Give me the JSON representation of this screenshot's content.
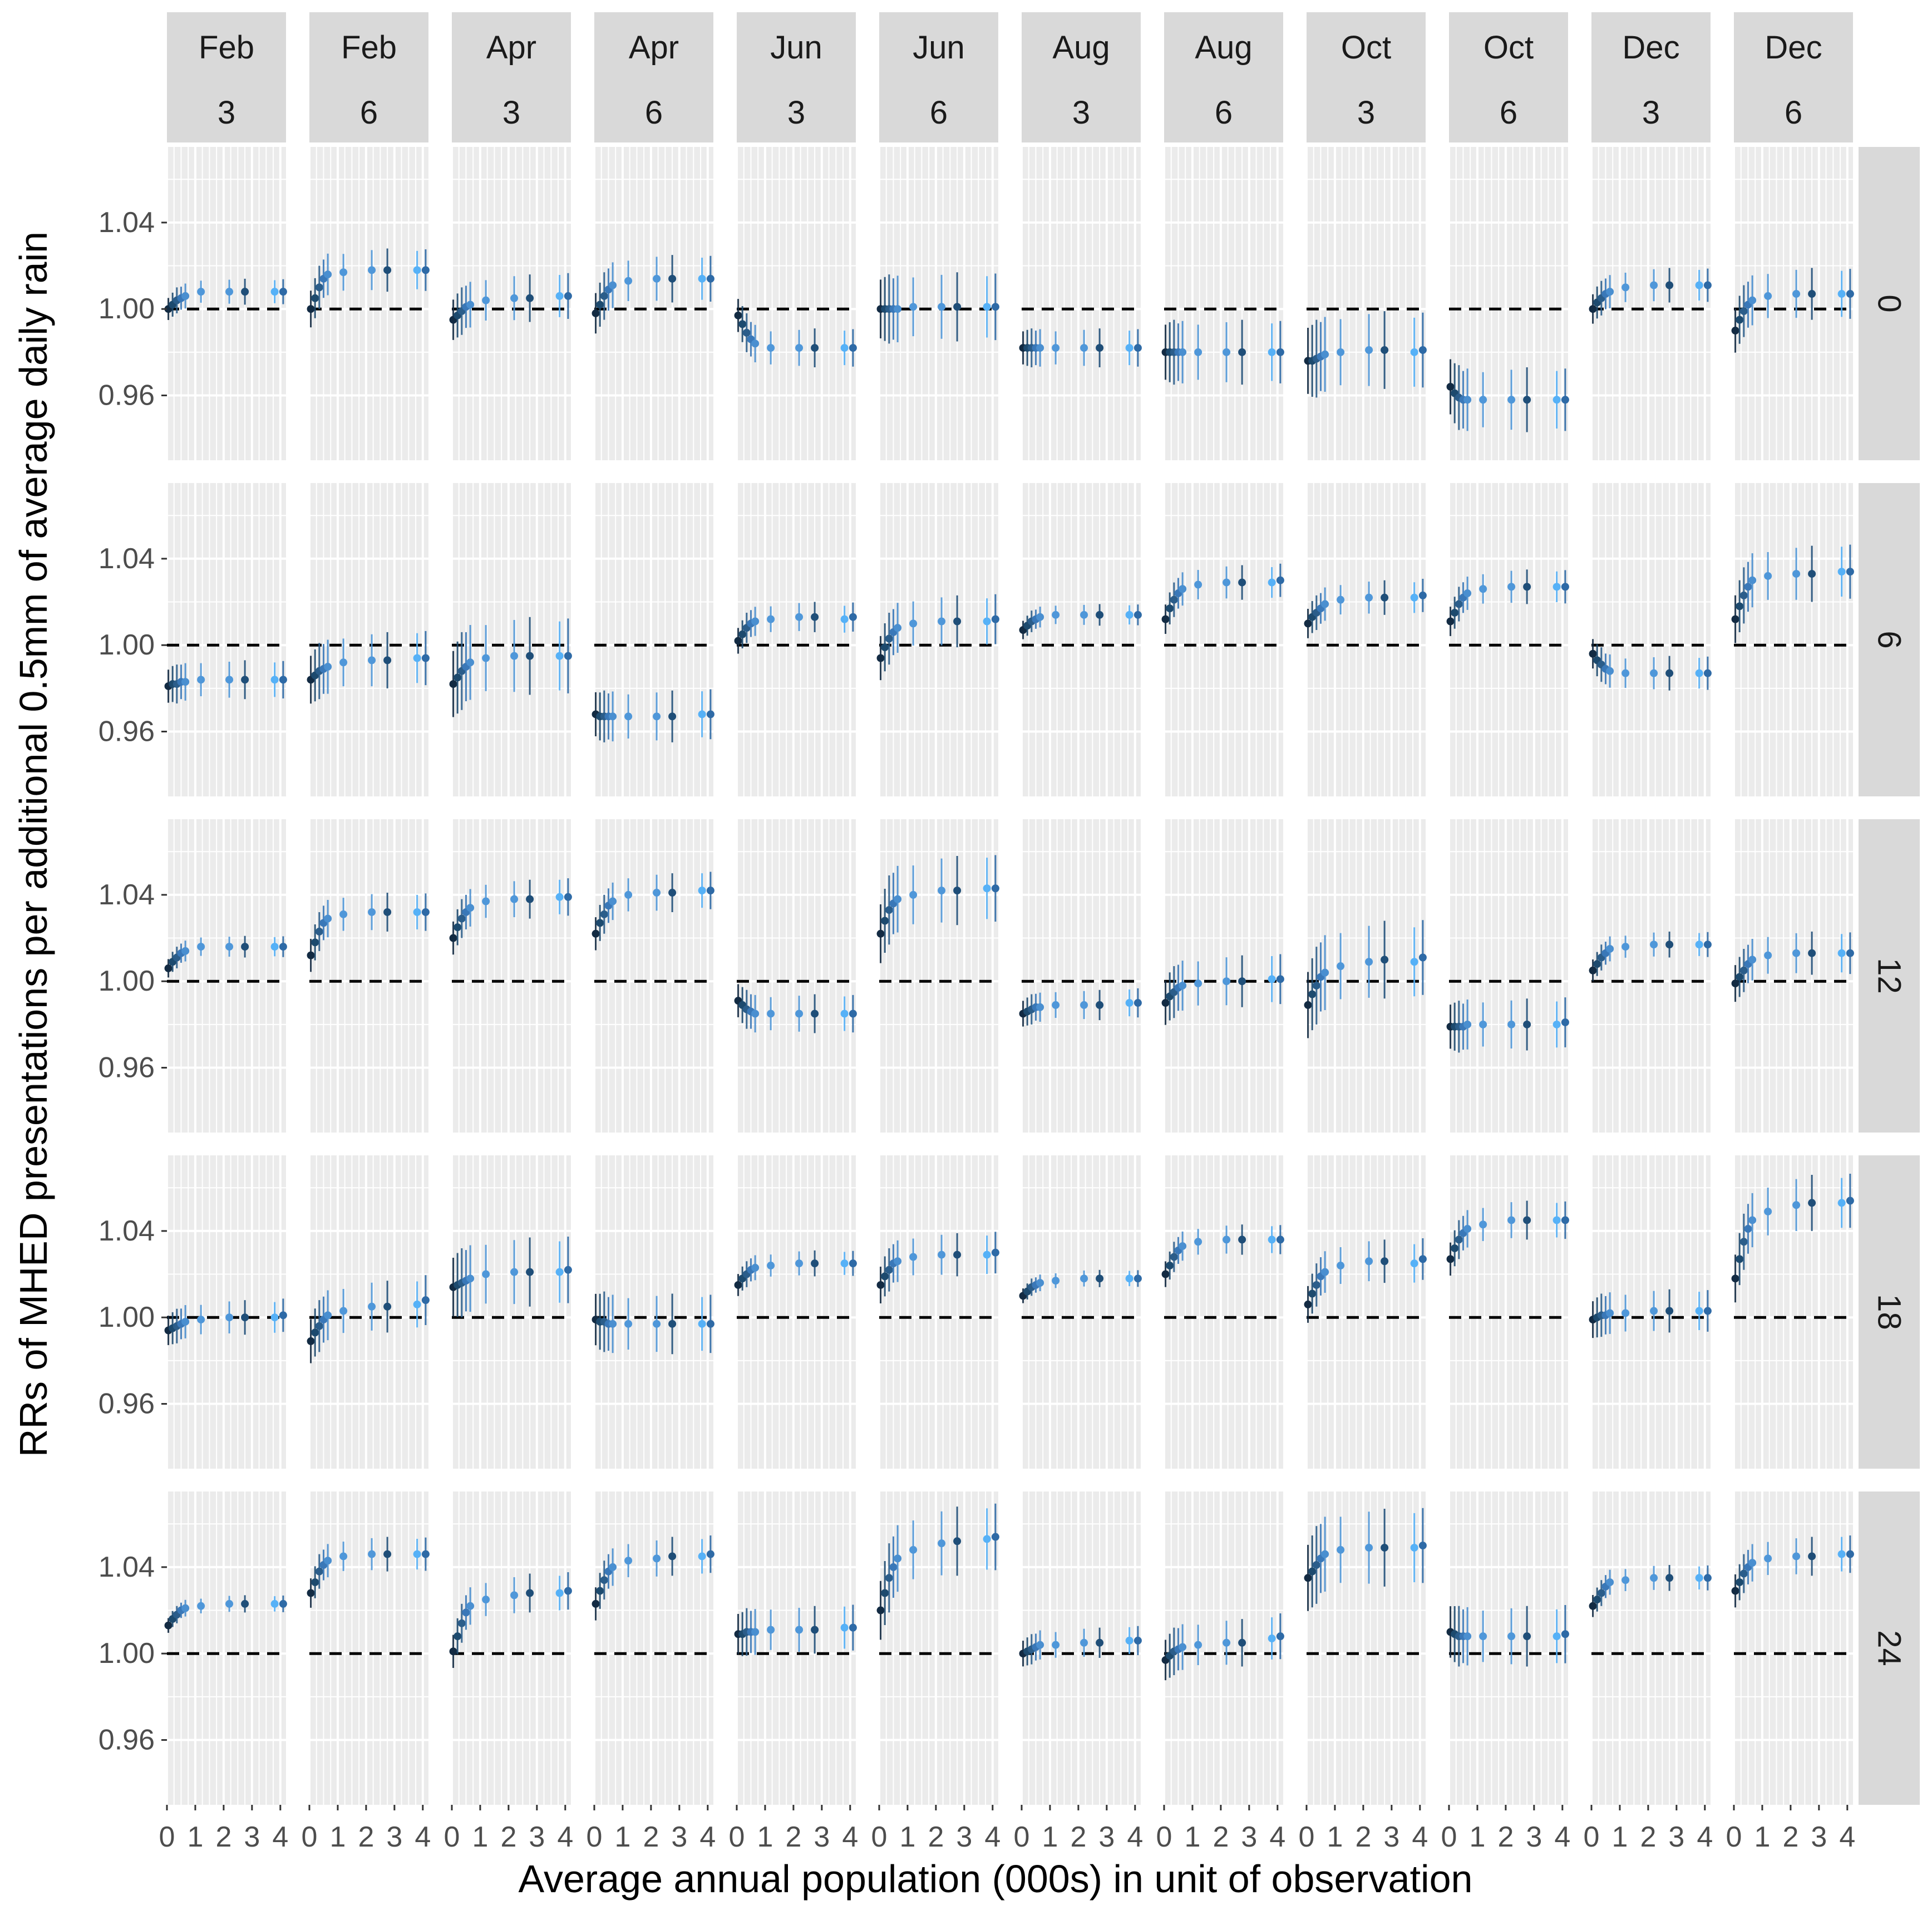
{
  "chart_data": {
    "type": "scatter",
    "subtype": "faceted point-range (estimate with confidence interval)",
    "title": "",
    "xlabel": "Average annual population (000s) in unit of observation",
    "ylabel": "RRs of MHED presentations per additional 0.5mm of average daily rain",
    "col_facets": [
      {
        "month": "Feb",
        "duration": "3"
      },
      {
        "month": "Feb",
        "duration": "6"
      },
      {
        "month": "Apr",
        "duration": "3"
      },
      {
        "month": "Apr",
        "duration": "6"
      },
      {
        "month": "Jun",
        "duration": "3"
      },
      {
        "month": "Jun",
        "duration": "6"
      },
      {
        "month": "Aug",
        "duration": "3"
      },
      {
        "month": "Aug",
        "duration": "6"
      },
      {
        "month": "Oct",
        "duration": "3"
      },
      {
        "month": "Oct",
        "duration": "6"
      },
      {
        "month": "Dec",
        "duration": "3"
      },
      {
        "month": "Dec",
        "duration": "6"
      }
    ],
    "row_facets": [
      "0",
      "6",
      "12",
      "18",
      "24"
    ],
    "x_ticks": [
      "0",
      "1",
      "2",
      "3",
      "4"
    ],
    "xlim": [
      0,
      4.2
    ],
    "y_ticks": [
      0.96,
      1.0,
      1.04
    ],
    "y_tick_labels": [
      "0.96",
      "1.00",
      "1.04"
    ],
    "ylim": [
      0.93,
      1.075
    ],
    "reference_line": {
      "y": 1.0,
      "style": "dashed",
      "color": "#000000"
    },
    "x_points": [
      0.05,
      0.2,
      0.35,
      0.5,
      0.65,
      1.2,
      2.2,
      2.75,
      3.8,
      4.1
    ],
    "point_colors": [
      "#132B43",
      "#1d4a6e",
      "#2b5d8a",
      "#3a78b8",
      "#4a8fd0",
      "#4f97d9",
      "#4f97d9",
      "#1f4e78",
      "#56B1F7",
      "#2e6aa6"
    ],
    "panels": [
      {
        "row": "0",
        "col": "Feb 3",
        "values": [
          1.0,
          1.002,
          1.004,
          1.005,
          1.006,
          1.008,
          1.008,
          1.008,
          1.008,
          1.008
        ],
        "ci_half": 0.006
      },
      {
        "row": "0",
        "col": "Feb 6",
        "values": [
          1.0,
          1.005,
          1.01,
          1.014,
          1.016,
          1.017,
          1.018,
          1.018,
          1.018,
          1.018
        ],
        "ci_half": 0.01
      },
      {
        "row": "0",
        "col": "Apr 3",
        "values": [
          0.995,
          0.997,
          0.999,
          1.001,
          1.002,
          1.004,
          1.005,
          1.005,
          1.006,
          1.006
        ],
        "ci_half": 0.011
      },
      {
        "row": "0",
        "col": "Apr 6",
        "values": [
          0.998,
          1.002,
          1.006,
          1.009,
          1.011,
          1.013,
          1.014,
          1.014,
          1.014,
          1.014
        ],
        "ci_half": 0.011
      },
      {
        "row": "0",
        "col": "Jun 3",
        "values": [
          0.997,
          0.993,
          0.989,
          0.986,
          0.984,
          0.982,
          0.982,
          0.982,
          0.982,
          0.982
        ],
        "ci_half": 0.009
      },
      {
        "row": "0",
        "col": "Jun 6",
        "values": [
          1.0,
          1.0,
          1.0,
          1.0,
          1.0,
          1.001,
          1.001,
          1.001,
          1.001,
          1.001
        ],
        "ci_half": 0.016
      },
      {
        "row": "0",
        "col": "Aug 3",
        "values": [
          0.982,
          0.982,
          0.982,
          0.982,
          0.982,
          0.982,
          0.982,
          0.982,
          0.982,
          0.982
        ],
        "ci_half": 0.009
      },
      {
        "row": "0",
        "col": "Aug 6",
        "values": [
          0.98,
          0.98,
          0.98,
          0.98,
          0.98,
          0.98,
          0.98,
          0.98,
          0.98,
          0.98
        ],
        "ci_half": 0.015
      },
      {
        "row": "0",
        "col": "Oct 3",
        "values": [
          0.976,
          0.976,
          0.977,
          0.978,
          0.979,
          0.98,
          0.981,
          0.981,
          0.98,
          0.981
        ],
        "ci_half": 0.018
      },
      {
        "row": "0",
        "col": "Oct 6",
        "values": [
          0.964,
          0.961,
          0.959,
          0.958,
          0.958,
          0.958,
          0.958,
          0.958,
          0.958,
          0.958
        ],
        "ci_half": 0.015
      },
      {
        "row": "0",
        "col": "Dec 3",
        "values": [
          1.0,
          1.003,
          1.005,
          1.007,
          1.008,
          1.01,
          1.011,
          1.011,
          1.011,
          1.011
        ],
        "ci_half": 0.008
      },
      {
        "row": "0",
        "col": "Dec 6",
        "values": [
          0.99,
          0.995,
          0.999,
          1.002,
          1.004,
          1.006,
          1.007,
          1.007,
          1.007,
          1.007
        ],
        "ci_half": 0.012
      },
      {
        "row": "6",
        "col": "Feb 3",
        "values": [
          0.981,
          0.982,
          0.982,
          0.983,
          0.983,
          0.984,
          0.984,
          0.984,
          0.984,
          0.984
        ],
        "ci_half": 0.009
      },
      {
        "row": "6",
        "col": "Feb 6",
        "values": [
          0.984,
          0.986,
          0.988,
          0.989,
          0.99,
          0.992,
          0.993,
          0.993,
          0.994,
          0.994
        ],
        "ci_half": 0.013
      },
      {
        "row": "6",
        "col": "Apr 3",
        "values": [
          0.982,
          0.985,
          0.988,
          0.99,
          0.992,
          0.994,
          0.995,
          0.995,
          0.995,
          0.995
        ],
        "ci_half": 0.018
      },
      {
        "row": "6",
        "col": "Apr 6",
        "values": [
          0.968,
          0.967,
          0.967,
          0.967,
          0.967,
          0.967,
          0.967,
          0.967,
          0.968,
          0.968
        ],
        "ci_half": 0.012
      },
      {
        "row": "6",
        "col": "Jun 3",
        "values": [
          1.002,
          1.005,
          1.008,
          1.01,
          1.011,
          1.012,
          1.013,
          1.013,
          1.012,
          1.013
        ],
        "ci_half": 0.007
      },
      {
        "row": "6",
        "col": "Jun 6",
        "values": [
          0.994,
          0.999,
          1.003,
          1.006,
          1.008,
          1.01,
          1.011,
          1.011,
          1.011,
          1.012
        ],
        "ci_half": 0.012
      },
      {
        "row": "6",
        "col": "Aug 3",
        "values": [
          1.007,
          1.009,
          1.011,
          1.012,
          1.013,
          1.014,
          1.014,
          1.014,
          1.014,
          1.014
        ],
        "ci_half": 0.005
      },
      {
        "row": "6",
        "col": "Aug 6",
        "values": [
          1.012,
          1.017,
          1.021,
          1.024,
          1.026,
          1.028,
          1.029,
          1.029,
          1.029,
          1.03
        ],
        "ci_half": 0.008
      },
      {
        "row": "6",
        "col": "Oct 3",
        "values": [
          1.01,
          1.013,
          1.015,
          1.017,
          1.019,
          1.021,
          1.022,
          1.022,
          1.022,
          1.023
        ],
        "ci_half": 0.008
      },
      {
        "row": "6",
        "col": "Oct 6",
        "values": [
          1.011,
          1.015,
          1.019,
          1.022,
          1.024,
          1.026,
          1.027,
          1.027,
          1.027,
          1.027
        ],
        "ci_half": 0.008
      },
      {
        "row": "6",
        "col": "Dec 3",
        "values": [
          0.996,
          0.993,
          0.991,
          0.989,
          0.988,
          0.987,
          0.987,
          0.987,
          0.987,
          0.987
        ],
        "ci_half": 0.008
      },
      {
        "row": "6",
        "col": "Dec 6",
        "values": [
          1.012,
          1.018,
          1.023,
          1.027,
          1.03,
          1.032,
          1.033,
          1.033,
          1.034,
          1.034
        ],
        "ci_half": 0.013
      },
      {
        "row": "12",
        "col": "Feb 3",
        "values": [
          1.006,
          1.009,
          1.011,
          1.013,
          1.014,
          1.016,
          1.016,
          1.016,
          1.016,
          1.016
        ],
        "ci_half": 0.005
      },
      {
        "row": "12",
        "col": "Feb 6",
        "values": [
          1.012,
          1.018,
          1.023,
          1.027,
          1.029,
          1.031,
          1.032,
          1.032,
          1.032,
          1.032
        ],
        "ci_half": 0.009
      },
      {
        "row": "12",
        "col": "Apr 3",
        "values": [
          1.02,
          1.025,
          1.029,
          1.032,
          1.034,
          1.037,
          1.038,
          1.038,
          1.039,
          1.039
        ],
        "ci_half": 0.009
      },
      {
        "row": "12",
        "col": "Apr 6",
        "values": [
          1.022,
          1.027,
          1.031,
          1.035,
          1.037,
          1.04,
          1.041,
          1.041,
          1.042,
          1.042
        ],
        "ci_half": 0.009
      },
      {
        "row": "12",
        "col": "Jun 3",
        "values": [
          0.991,
          0.989,
          0.987,
          0.986,
          0.985,
          0.985,
          0.985,
          0.985,
          0.985,
          0.985
        ],
        "ci_half": 0.009
      },
      {
        "row": "12",
        "col": "Jun 6",
        "values": [
          1.022,
          1.028,
          1.033,
          1.036,
          1.038,
          1.04,
          1.042,
          1.042,
          1.043,
          1.043
        ],
        "ci_half": 0.016
      },
      {
        "row": "12",
        "col": "Aug 3",
        "values": [
          0.985,
          0.986,
          0.987,
          0.988,
          0.988,
          0.989,
          0.989,
          0.989,
          0.99,
          0.99
        ],
        "ci_half": 0.007
      },
      {
        "row": "12",
        "col": "Aug 6",
        "values": [
          0.99,
          0.993,
          0.995,
          0.997,
          0.998,
          0.999,
          1.0,
          1.0,
          1.001,
          1.001
        ],
        "ci_half": 0.012
      },
      {
        "row": "12",
        "col": "Oct 3",
        "values": [
          0.989,
          0.994,
          0.998,
          1.002,
          1.004,
          1.007,
          1.009,
          1.01,
          1.009,
          1.011
        ],
        "ci_half": 0.018
      },
      {
        "row": "12",
        "col": "Oct 6",
        "values": [
          0.979,
          0.979,
          0.979,
          0.979,
          0.98,
          0.98,
          0.98,
          0.98,
          0.98,
          0.981
        ],
        "ci_half": 0.012
      },
      {
        "row": "12",
        "col": "Dec 3",
        "values": [
          1.005,
          1.008,
          1.011,
          1.013,
          1.015,
          1.016,
          1.017,
          1.017,
          1.017,
          1.017
        ],
        "ci_half": 0.006
      },
      {
        "row": "12",
        "col": "Dec 6",
        "values": [
          0.999,
          1.002,
          1.005,
          1.008,
          1.01,
          1.012,
          1.013,
          1.013,
          1.013,
          1.013
        ],
        "ci_half": 0.01
      },
      {
        "row": "18",
        "col": "Feb 3",
        "values": [
          0.994,
          0.995,
          0.996,
          0.997,
          0.998,
          0.999,
          1.0,
          1.0,
          1.0,
          1.001
        ],
        "ci_half": 0.008
      },
      {
        "row": "18",
        "col": "Feb 6",
        "values": [
          0.989,
          0.993,
          0.996,
          0.999,
          1.001,
          1.003,
          1.005,
          1.005,
          1.006,
          1.008
        ],
        "ci_half": 0.012
      },
      {
        "row": "18",
        "col": "Apr 3",
        "values": [
          1.014,
          1.015,
          1.016,
          1.017,
          1.018,
          1.02,
          1.021,
          1.021,
          1.021,
          1.022
        ],
        "ci_half": 0.016
      },
      {
        "row": "18",
        "col": "Apr 6",
        "values": [
          0.999,
          0.998,
          0.998,
          0.997,
          0.997,
          0.997,
          0.997,
          0.997,
          0.997,
          0.997
        ],
        "ci_half": 0.014
      },
      {
        "row": "18",
        "col": "Jun 3",
        "values": [
          1.015,
          1.018,
          1.02,
          1.022,
          1.023,
          1.024,
          1.025,
          1.025,
          1.025,
          1.025
        ],
        "ci_half": 0.006
      },
      {
        "row": "18",
        "col": "Jun 6",
        "values": [
          1.015,
          1.019,
          1.022,
          1.025,
          1.026,
          1.028,
          1.029,
          1.029,
          1.029,
          1.03
        ],
        "ci_half": 0.01
      },
      {
        "row": "18",
        "col": "Aug 3",
        "values": [
          1.01,
          1.012,
          1.014,
          1.015,
          1.016,
          1.017,
          1.018,
          1.018,
          1.018,
          1.018
        ],
        "ci_half": 0.004
      },
      {
        "row": "18",
        "col": "Aug 6",
        "values": [
          1.02,
          1.024,
          1.028,
          1.031,
          1.033,
          1.035,
          1.036,
          1.036,
          1.036,
          1.036
        ],
        "ci_half": 0.007
      },
      {
        "row": "18",
        "col": "Oct 3",
        "values": [
          1.006,
          1.011,
          1.015,
          1.019,
          1.021,
          1.024,
          1.026,
          1.026,
          1.025,
          1.027
        ],
        "ci_half": 0.01
      },
      {
        "row": "18",
        "col": "Oct 6",
        "values": [
          1.027,
          1.032,
          1.036,
          1.039,
          1.041,
          1.043,
          1.045,
          1.045,
          1.045,
          1.045
        ],
        "ci_half": 0.009
      },
      {
        "row": "18",
        "col": "Dec 3",
        "values": [
          0.999,
          1.0,
          1.001,
          1.001,
          1.002,
          1.002,
          1.003,
          1.003,
          1.003,
          1.003
        ],
        "ci_half": 0.01
      },
      {
        "row": "18",
        "col": "Dec 6",
        "values": [
          1.018,
          1.027,
          1.035,
          1.041,
          1.045,
          1.049,
          1.052,
          1.053,
          1.053,
          1.054
        ],
        "ci_half": 0.013
      },
      {
        "row": "24",
        "col": "Feb 3",
        "values": [
          1.013,
          1.016,
          1.018,
          1.02,
          1.021,
          1.022,
          1.023,
          1.023,
          1.023,
          1.023
        ],
        "ci_half": 0.004
      },
      {
        "row": "24",
        "col": "Feb 6",
        "values": [
          1.028,
          1.033,
          1.038,
          1.041,
          1.043,
          1.045,
          1.046,
          1.046,
          1.046,
          1.046
        ],
        "ci_half": 0.008
      },
      {
        "row": "24",
        "col": "Apr 3",
        "values": [
          1.001,
          1.008,
          1.014,
          1.019,
          1.022,
          1.025,
          1.027,
          1.028,
          1.028,
          1.029
        ],
        "ci_half": 0.009
      },
      {
        "row": "24",
        "col": "Apr 6",
        "values": [
          1.023,
          1.029,
          1.034,
          1.038,
          1.04,
          1.043,
          1.044,
          1.045,
          1.045,
          1.046
        ],
        "ci_half": 0.009
      },
      {
        "row": "24",
        "col": "Jun 3",
        "values": [
          1.009,
          1.009,
          1.01,
          1.01,
          1.01,
          1.011,
          1.011,
          1.011,
          1.012,
          1.012
        ],
        "ci_half": 0.011
      },
      {
        "row": "24",
        "col": "Jun 6",
        "values": [
          1.02,
          1.028,
          1.035,
          1.04,
          1.044,
          1.048,
          1.051,
          1.052,
          1.053,
          1.054
        ],
        "ci_half": 0.016
      },
      {
        "row": "24",
        "col": "Aug 3",
        "values": [
          1.0,
          1.001,
          1.002,
          1.003,
          1.004,
          1.004,
          1.005,
          1.005,
          1.006,
          1.006
        ],
        "ci_half": 0.007
      },
      {
        "row": "24",
        "col": "Aug 6",
        "values": [
          0.997,
          0.999,
          1.001,
          1.002,
          1.003,
          1.004,
          1.005,
          1.005,
          1.007,
          1.008
        ],
        "ci_half": 0.011
      },
      {
        "row": "24",
        "col": "Oct 3",
        "values": [
          1.035,
          1.038,
          1.041,
          1.044,
          1.046,
          1.048,
          1.049,
          1.049,
          1.049,
          1.05
        ],
        "ci_half": 0.018
      },
      {
        "row": "24",
        "col": "Oct 6",
        "values": [
          1.01,
          1.009,
          1.008,
          1.008,
          1.008,
          1.008,
          1.008,
          1.008,
          1.008,
          1.009
        ],
        "ci_half": 0.014
      },
      {
        "row": "24",
        "col": "Dec 3",
        "values": [
          1.022,
          1.025,
          1.028,
          1.031,
          1.033,
          1.034,
          1.035,
          1.035,
          1.035,
          1.035
        ],
        "ci_half": 0.006
      },
      {
        "row": "24",
        "col": "Dec 6",
        "values": [
          1.029,
          1.033,
          1.037,
          1.04,
          1.042,
          1.044,
          1.045,
          1.045,
          1.046,
          1.046
        ],
        "ci_half": 0.009
      }
    ]
  }
}
